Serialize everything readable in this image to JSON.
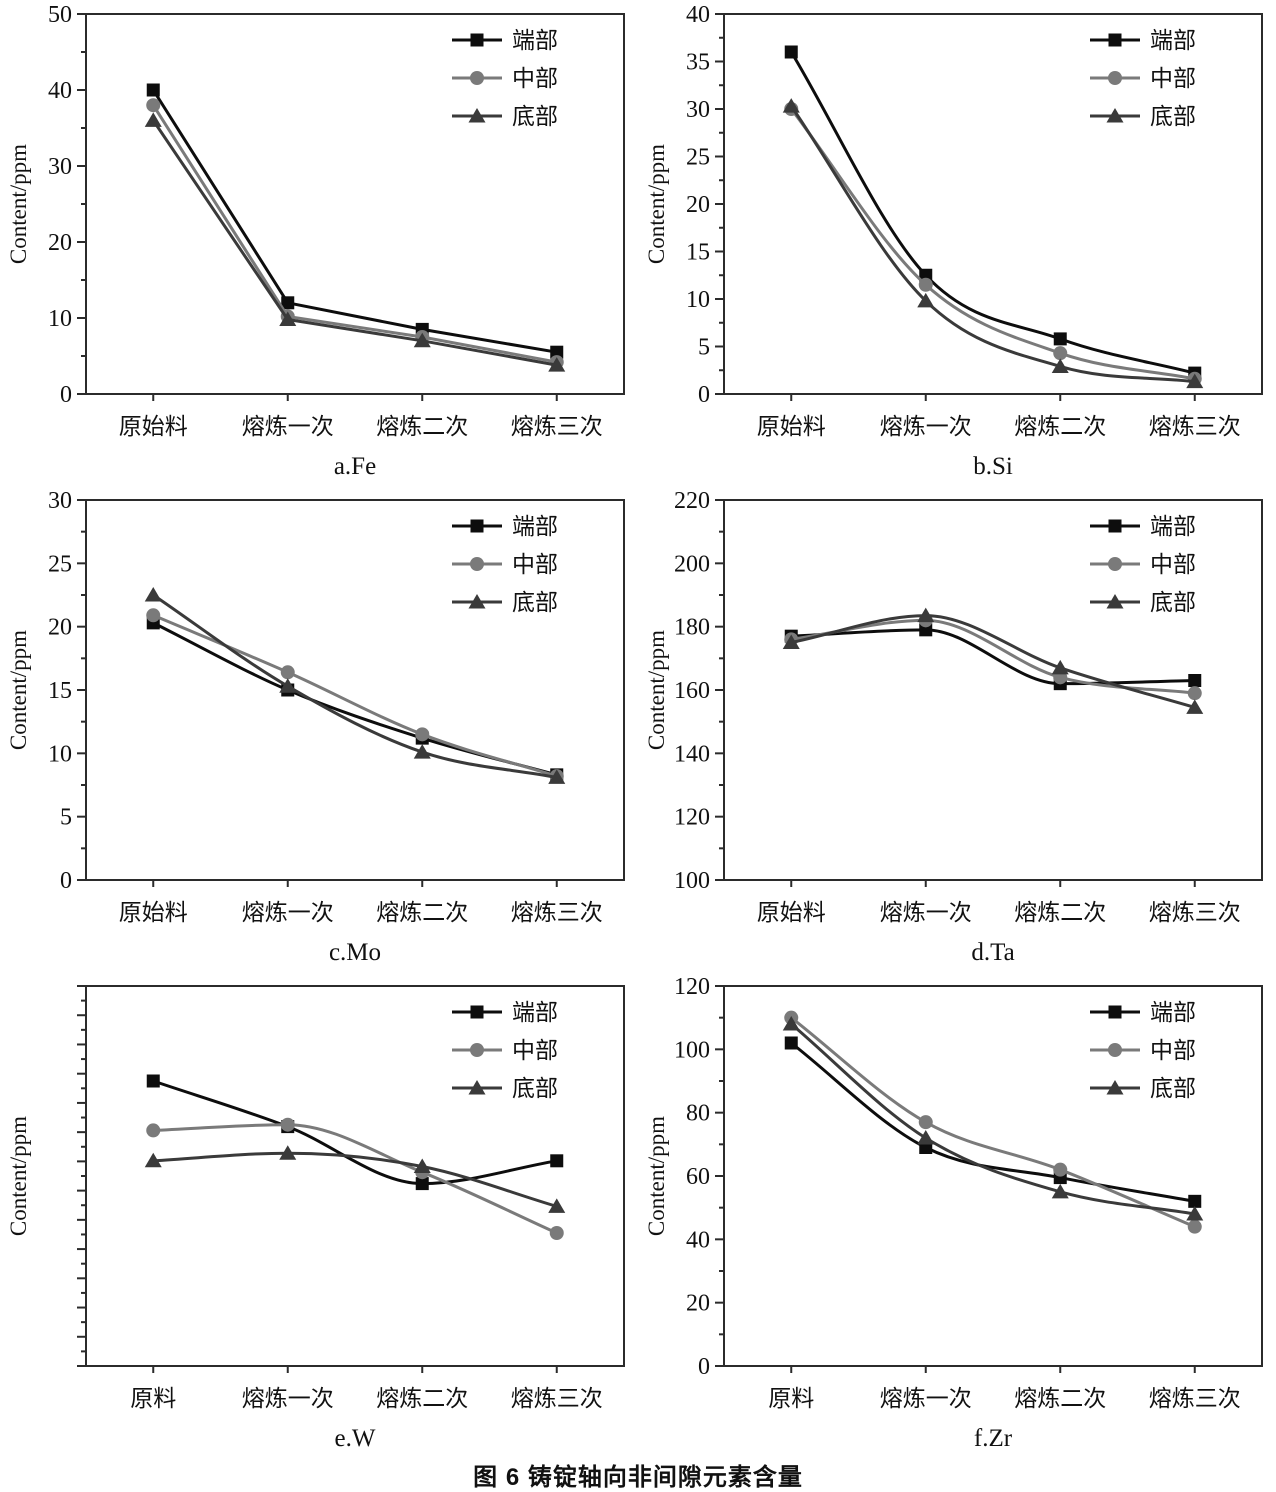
{
  "figure": {
    "caption": "图 6  铸锭轴向非间隙元素含量",
    "y_axis_label": "Content/ppm",
    "colors": {
      "end": "#0d0d0d",
      "middle": "#7a7a7a",
      "bottom": "#3a3a3a"
    },
    "legend": {
      "position": "top-right",
      "entries": [
        "端部",
        "中部",
        "底部"
      ]
    }
  },
  "chart_data": [
    {
      "id": "chart-a-fe",
      "type": "line",
      "title": "a.Fe",
      "ylabel": "Content/ppm",
      "categories": [
        "原始料",
        "熔炼一次",
        "熔炼二次",
        "熔炼三次"
      ],
      "ylim": [
        0,
        50
      ],
      "ytick_major": 10,
      "ytick_minor": 5,
      "grid": false,
      "smooth": false,
      "legend_position": "top-right",
      "series": [
        {
          "name": "端部",
          "marker": "square",
          "color": "#0d0d0d",
          "values": [
            40,
            12,
            8.5,
            5.5
          ]
        },
        {
          "name": "中部",
          "marker": "circle",
          "color": "#7a7a7a",
          "values": [
            38,
            10.2,
            7.5,
            4.2
          ]
        },
        {
          "name": "底部",
          "marker": "triangle",
          "color": "#3a3a3a",
          "values": [
            36,
            9.8,
            7.0,
            3.8
          ]
        }
      ]
    },
    {
      "id": "chart-b-si",
      "type": "line",
      "title": "b.Si",
      "ylabel": "Content/ppm",
      "categories": [
        "原始料",
        "熔炼一次",
        "熔炼二次",
        "熔炼三次"
      ],
      "ylim": [
        0,
        40
      ],
      "ytick_major": 5,
      "ytick_minor": 2.5,
      "grid": false,
      "smooth": true,
      "legend_position": "top-right",
      "series": [
        {
          "name": "端部",
          "marker": "square",
          "color": "#0d0d0d",
          "values": [
            36,
            12.5,
            5.8,
            2.2
          ]
        },
        {
          "name": "中部",
          "marker": "circle",
          "color": "#7a7a7a",
          "values": [
            30,
            11.5,
            4.3,
            1.6
          ]
        },
        {
          "name": "底部",
          "marker": "triangle",
          "color": "#3a3a3a",
          "values": [
            30.3,
            9.8,
            2.9,
            1.3
          ]
        }
      ]
    },
    {
      "id": "chart-c-mo",
      "type": "line",
      "title": "c.Mo",
      "ylabel": "Content/ppm",
      "categories": [
        "原始料",
        "熔炼一次",
        "熔炼二次",
        "熔炼三次"
      ],
      "ylim": [
        0,
        30
      ],
      "ytick_major": 5,
      "ytick_minor": 2.5,
      "grid": false,
      "smooth": true,
      "legend_position": "top-right",
      "series": [
        {
          "name": "端部",
          "marker": "square",
          "color": "#0d0d0d",
          "values": [
            20.3,
            15.0,
            11.2,
            8.3
          ]
        },
        {
          "name": "中部",
          "marker": "circle",
          "color": "#7a7a7a",
          "values": [
            20.9,
            16.4,
            11.5,
            8.2
          ]
        },
        {
          "name": "底部",
          "marker": "triangle",
          "color": "#3a3a3a",
          "values": [
            22.5,
            15.3,
            10.1,
            8.1
          ]
        }
      ]
    },
    {
      "id": "chart-d-ta",
      "type": "line",
      "title": "d.Ta",
      "ylabel": "Content/ppm",
      "categories": [
        "原始料",
        "熔炼一次",
        "熔炼二次",
        "熔炼三次"
      ],
      "ylim": [
        100,
        220
      ],
      "ytick_major": 20,
      "ytick_minor": 10,
      "grid": false,
      "smooth": true,
      "legend_position": "top-right",
      "series": [
        {
          "name": "端部",
          "marker": "square",
          "color": "#0d0d0d",
          "values": [
            177,
            179,
            162,
            163
          ]
        },
        {
          "name": "中部",
          "marker": "circle",
          "color": "#7a7a7a",
          "values": [
            176,
            182,
            164,
            159
          ]
        },
        {
          "name": "底部",
          "marker": "triangle",
          "color": "#3a3a3a",
          "values": [
            175,
            183.5,
            167,
            154.5
          ]
        }
      ]
    },
    {
      "id": "chart-e-w",
      "type": "line",
      "title": "e.W",
      "ylabel": "Content/ppm",
      "categories": [
        "原料",
        "熔炼一次",
        "熔炼二次",
        "熔炼三次"
      ],
      "ylim": [
        0,
        1
      ],
      "y_axis_unlabeled": true,
      "ytick_count": 27,
      "value_units": "relative fraction of unlabeled axis (0=bottom, 1=top)",
      "grid": false,
      "smooth": true,
      "legend_position": "top-right",
      "series": [
        {
          "name": "端部",
          "marker": "square",
          "color": "#0d0d0d",
          "values": [
            0.75,
            0.63,
            0.48,
            0.54
          ]
        },
        {
          "name": "中部",
          "marker": "circle",
          "color": "#7a7a7a",
          "values": [
            0.62,
            0.635,
            0.51,
            0.35
          ]
        },
        {
          "name": "底部",
          "marker": "triangle",
          "color": "#3a3a3a",
          "values": [
            0.54,
            0.56,
            0.525,
            0.42
          ]
        }
      ]
    },
    {
      "id": "chart-f-zr",
      "type": "line",
      "title": "f.Zr",
      "ylabel": "Content/ppm",
      "categories": [
        "原料",
        "熔炼一次",
        "熔炼二次",
        "熔炼三次"
      ],
      "ylim": [
        0,
        120
      ],
      "ytick_major": 20,
      "ytick_minor": 10,
      "grid": false,
      "smooth": true,
      "legend_position": "top-right",
      "series": [
        {
          "name": "端部",
          "marker": "square",
          "color": "#0d0d0d",
          "values": [
            102,
            69,
            59.5,
            52
          ]
        },
        {
          "name": "中部",
          "marker": "circle",
          "color": "#7a7a7a",
          "values": [
            110,
            77,
            62,
            44
          ]
        },
        {
          "name": "底部",
          "marker": "triangle",
          "color": "#3a3a3a",
          "values": [
            108,
            72,
            55,
            48
          ]
        }
      ]
    }
  ]
}
